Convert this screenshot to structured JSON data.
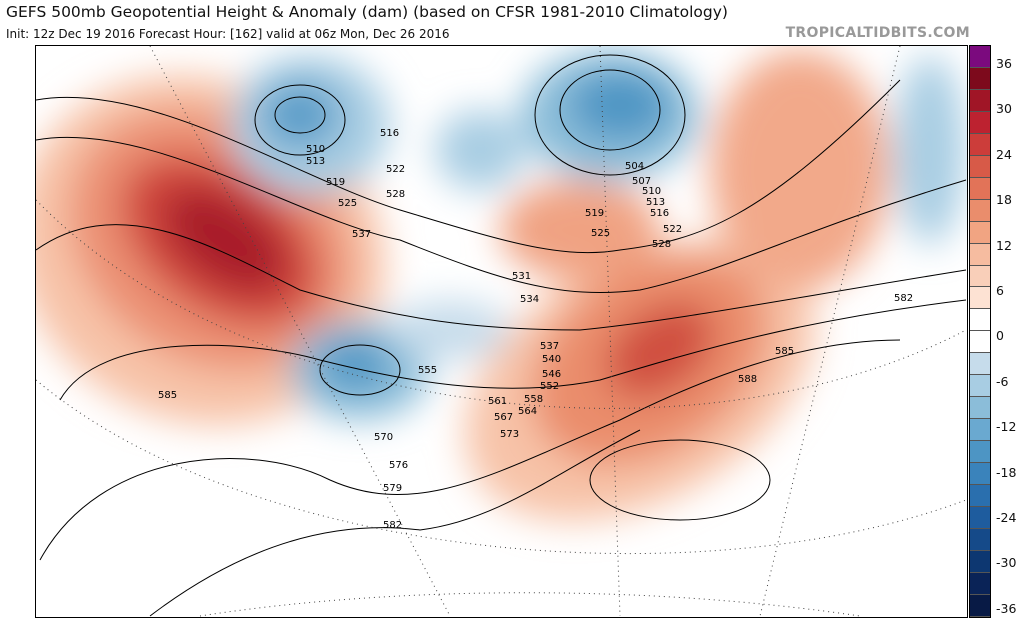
{
  "header": {
    "title": "GEFS 500mb Geopotential Height & Anomaly (dam) (based on CFSR 1981-2010 Climatology)",
    "subtitle": "Init: 12z Dec 19 2016   Forecast Hour: [162]   valid at 06z Mon, Dec 26 2016",
    "brand": "TROPICALTIDBITS.COM"
  },
  "colorbar": {
    "ticks": [
      "36",
      "30",
      "24",
      "18",
      "12",
      "6",
      "0",
      "-6",
      "-12",
      "-18",
      "-24",
      "-30",
      "-36"
    ],
    "colors": [
      "#7b0a7e",
      "#7d0a1c",
      "#a01526",
      "#bd2230",
      "#cc3d3a",
      "#d75a48",
      "#e27358",
      "#ea8d6c",
      "#f1a482",
      "#f6bca0",
      "#f9cfb9",
      "#fde2d3",
      "#ffffff",
      "#ffffff",
      "#c6dceb",
      "#a8cde3",
      "#8bbdd9",
      "#6aa9d0",
      "#4d95c4",
      "#3a83bb",
      "#2a6fae",
      "#1e5c9e",
      "#154a89",
      "#0d3771",
      "#0a2357",
      "#081a45"
    ]
  },
  "contour_labels": [
    "510",
    "513",
    "516",
    "519",
    "522",
    "525",
    "528",
    "537",
    "531",
    "534",
    "537",
    "540",
    "546",
    "552",
    "555",
    "558",
    "561",
    "564",
    "567",
    "573",
    "570",
    "576",
    "579",
    "582",
    "585",
    "504",
    "507",
    "510",
    "513",
    "516",
    "519",
    "525",
    "522",
    "528",
    "582",
    "585",
    "588"
  ]
}
